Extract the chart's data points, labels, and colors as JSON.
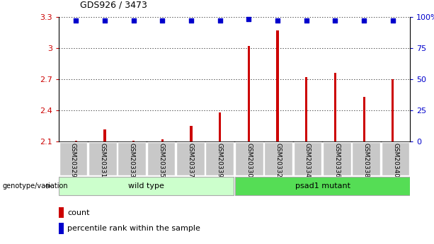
{
  "title": "GDS926 / 3473",
  "categories": [
    "GSM20329",
    "GSM20331",
    "GSM20333",
    "GSM20335",
    "GSM20337",
    "GSM20339",
    "GSM20330",
    "GSM20332",
    "GSM20334",
    "GSM20336",
    "GSM20338",
    "GSM20340"
  ],
  "count_values": [
    2.11,
    2.22,
    2.11,
    2.12,
    2.25,
    2.38,
    3.02,
    3.17,
    2.72,
    2.76,
    2.53,
    2.7
  ],
  "percentile_values": [
    3.27,
    3.27,
    3.27,
    3.27,
    3.27,
    3.27,
    3.28,
    3.27,
    3.27,
    3.27,
    3.27,
    3.27
  ],
  "bar_color": "#cc0000",
  "dot_color": "#0000cc",
  "ylim_left": [
    2.1,
    3.3
  ],
  "ylim_right": [
    0,
    100
  ],
  "yticks_left": [
    2.1,
    2.4,
    2.7,
    3.0,
    3.3
  ],
  "yticks_right": [
    0,
    25,
    50,
    75,
    100
  ],
  "ytick_labels_left": [
    "2.1",
    "2.4",
    "2.7",
    "3",
    "3.3"
  ],
  "ytick_labels_right": [
    "0",
    "25",
    "50",
    "75",
    "100%"
  ],
  "group1_label": "wild type",
  "group2_label": "psad1 mutant",
  "group1_count": 6,
  "group2_count": 6,
  "genotype_label": "genotype/variation",
  "legend_count_label": "count",
  "legend_percentile_label": "percentile rank within the sample",
  "group1_bg": "#ccffcc",
  "group2_bg": "#55dd55",
  "header_bg": "#c8c8c8",
  "bar_width": 0.08
}
